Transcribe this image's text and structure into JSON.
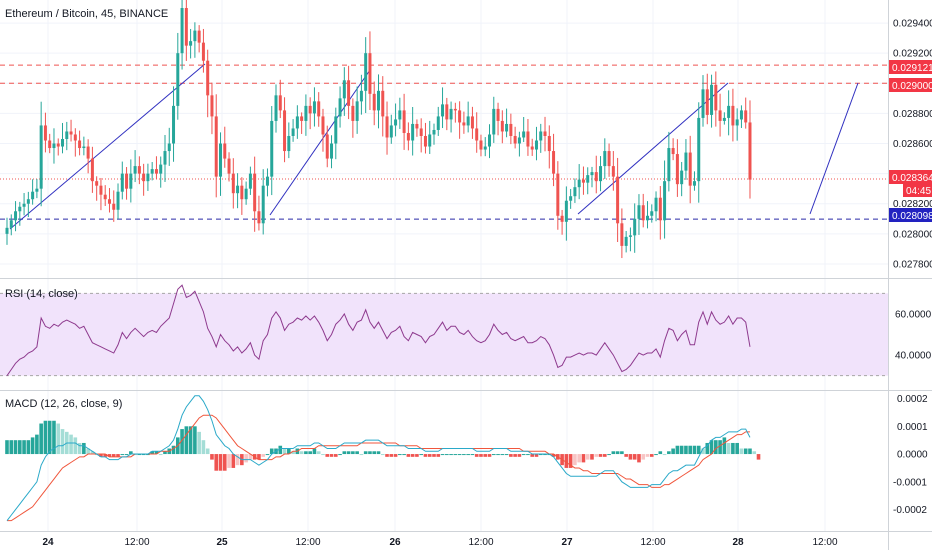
{
  "header": {
    "symbol_title": "Ethereum / Bitcoin, 45, BINANCE"
  },
  "colors": {
    "up": "#26a69a",
    "down": "#ef5350",
    "red_line": "#ef5350",
    "blue_line": "#2a2aa8",
    "trend_line": "#3030c0",
    "rsi_line": "#8e3a8e",
    "rsi_band": "#f1e3fb",
    "macd_line": "#2aa9c9",
    "signal_line": "#f0563c",
    "hist_up_strong": "#26a69a",
    "hist_up_weak": "#a4ddd6",
    "hist_down_strong": "#ef5350",
    "hist_down_weak": "#f8c4c4"
  },
  "panes": {
    "rsi_label": "RSI (14, close)",
    "macd_label": "MACD (12, 26, close, 9)"
  },
  "price_axis": {
    "ticks": [
      "0.029400",
      "0.029200",
      "0.029000",
      "0.028800",
      "0.028600",
      "0.028400",
      "0.028200",
      "0.028000",
      "0.027800"
    ]
  },
  "rsi_axis": {
    "ticks": [
      "60.0000",
      "40.0000"
    ]
  },
  "macd_axis": {
    "ticks": [
      "0.0002",
      "0.0001",
      "0.0000",
      "-0.0001",
      "-0.0002"
    ]
  },
  "time_axis": {
    "ticks": [
      "24",
      "12:00",
      "25",
      "12:00",
      "26",
      "12:00",
      "27",
      "12:00",
      "28",
      "12:00"
    ]
  },
  "badges": {
    "level_high": "0.029121",
    "level_mid": "0.029000",
    "current_price": "0.028364",
    "countdown": "04:45",
    "level_low": "0.028098"
  },
  "chart_data": {
    "type": "candlestick",
    "title": "Ethereum / Bitcoin, 45, BINANCE",
    "close_series": [
      0.02804,
      0.02809,
      0.02815,
      0.02818,
      0.0282,
      0.02823,
      0.02828,
      0.0283,
      0.02872,
      0.02862,
      0.02857,
      0.0286,
      0.02858,
      0.02863,
      0.02868,
      0.02866,
      0.02862,
      0.02857,
      0.02858,
      0.0285,
      0.02835,
      0.02832,
      0.02826,
      0.02823,
      0.0282,
      0.02816,
      0.02828,
      0.0284,
      0.0283,
      0.0284,
      0.02845,
      0.0284,
      0.02835,
      0.0284,
      0.02843,
      0.0284,
      0.02846,
      0.02855,
      0.0286,
      0.02885,
      0.0292,
      0.0295,
      0.02925,
      0.02928,
      0.02935,
      0.02927,
      0.02915,
      0.02892,
      0.02878,
      0.02838,
      0.0286,
      0.0285,
      0.0284,
      0.02827,
      0.02832,
      0.02823,
      0.0283,
      0.0284,
      0.02815,
      0.02807,
      0.02832,
      0.02838,
      0.02875,
      0.02892,
      0.02882,
      0.02855,
      0.02865,
      0.0287,
      0.02878,
      0.02875,
      0.02885,
      0.0288,
      0.02888,
      0.02878,
      0.02866,
      0.0285,
      0.0286,
      0.02878,
      0.0289,
      0.02902,
      0.02885,
      0.02875,
      0.02888,
      0.02895,
      0.0292,
      0.02893,
      0.02882,
      0.02895,
      0.02878,
      0.02864,
      0.02872,
      0.02876,
      0.02882,
      0.02867,
      0.02862,
      0.02873,
      0.0287,
      0.02865,
      0.02858,
      0.02866,
      0.02869,
      0.02878,
      0.02886,
      0.02876,
      0.02883,
      0.02882,
      0.02874,
      0.02872,
      0.02878,
      0.0287,
      0.02862,
      0.02856,
      0.02858,
      0.02866,
      0.02883,
      0.02875,
      0.02868,
      0.02873,
      0.02865,
      0.0286,
      0.02864,
      0.02868,
      0.02858,
      0.02856,
      0.02862,
      0.02868,
      0.02865,
      0.02855,
      0.0284,
      0.02812,
      0.02808,
      0.02822,
      0.02825,
      0.02831,
      0.02836,
      0.02834,
      0.02839,
      0.02841,
      0.02835,
      0.02845,
      0.02855,
      0.02845,
      0.02838,
      0.02807,
      0.02792,
      0.02798,
      0.02799,
      0.0281,
      0.02819,
      0.02809,
      0.02812,
      0.02815,
      0.02824,
      0.02809,
      0.02835,
      0.02857,
      0.02853,
      0.02833,
      0.02842,
      0.02854,
      0.02832,
      0.02835,
      0.02877,
      0.02896,
      0.02879,
      0.02899,
      0.02882,
      0.02875,
      0.02877,
      0.02885,
      0.02872,
      0.02876,
      0.02882,
      0.02874,
      0.02836
    ],
    "price_axis": {
      "range": [
        0.02772,
        0.02954
      ],
      "ticks": [
        0.0294,
        0.0292,
        0.029,
        0.0288,
        0.0286,
        0.0284,
        0.0282,
        0.028,
        0.0278
      ]
    },
    "horizontal_levels": [
      {
        "value": 0.029121,
        "color": "#ef5350",
        "style": "dashed"
      },
      {
        "value": 0.029,
        "color": "#ef5350",
        "style": "dashed"
      },
      {
        "value": 0.028364,
        "color": "#ef5350",
        "style": "dotted"
      },
      {
        "value": 0.028098,
        "color": "#2a2aa8",
        "style": "dashed"
      }
    ],
    "rsi": {
      "range": [
        24,
        76
      ],
      "band": [
        30,
        70
      ],
      "ticks": [
        60,
        40
      ],
      "values": [
        30,
        33,
        36,
        38,
        39,
        41,
        42,
        44,
        58,
        54,
        53,
        55,
        54,
        56,
        57,
        56,
        55,
        53,
        54,
        50,
        46,
        45,
        44,
        43,
        42,
        41,
        45,
        51,
        48,
        51,
        53,
        51,
        49,
        51,
        52,
        51,
        54,
        56,
        58,
        65,
        72,
        74,
        68,
        69,
        71,
        66,
        61,
        53,
        49,
        44,
        50,
        47,
        45,
        42,
        44,
        41,
        43,
        46,
        40,
        38,
        47,
        50,
        58,
        61,
        58,
        52,
        55,
        56,
        58,
        57,
        59,
        57,
        59,
        56,
        52,
        47,
        50,
        55,
        57,
        60,
        55,
        52,
        56,
        57,
        62,
        56,
        53,
        56,
        52,
        48,
        51,
        52,
        54,
        49,
        47,
        51,
        50,
        49,
        46,
        49,
        50,
        53,
        56,
        52,
        54,
        54,
        51,
        50,
        52,
        49,
        47,
        46,
        47,
        50,
        55,
        52,
        50,
        51,
        48,
        47,
        48,
        49,
        46,
        46,
        47,
        49,
        48,
        45,
        40,
        34,
        35,
        39,
        39,
        40,
        41,
        40,
        41,
        41,
        40,
        43,
        46,
        43,
        40,
        36,
        32,
        33,
        35,
        38,
        41,
        40,
        41,
        41,
        43,
        39,
        47,
        53,
        52,
        47,
        50,
        52,
        45,
        45,
        56,
        61,
        55,
        61,
        57,
        55,
        56,
        59,
        55,
        58,
        58,
        56,
        44
      ]
    },
    "macd": {
      "range": [
        -0.00027,
        0.00022
      ],
      "ticks": [
        0.0002,
        0.0001,
        0.0,
        -0.0001,
        -0.0002
      ],
      "macd": [
        -0.00024,
        -0.00022,
        -0.0002,
        -0.00018,
        -0.00016,
        -0.00014,
        -0.00012,
        -0.0001,
        -4e-05,
        -1e-05,
        1e-05,
        2e-05,
        3e-05,
        3e-05,
        4e-05,
        4e-05,
        4e-05,
        3e-05,
        3e-05,
        2e-05,
        1e-05,
        0.0,
        -1e-05,
        -1e-05,
        -2e-05,
        -2e-05,
        -2e-05,
        -1e-05,
        -1e-05,
        0.0,
        0.0,
        0.0,
        0.0,
        0.0,
        1e-05,
        1e-05,
        1e-05,
        2e-05,
        3e-05,
        5e-05,
        9e-05,
        0.00014,
        0.00017,
        0.00019,
        0.00021,
        0.00021,
        0.00019,
        0.00016,
        0.00012,
        7e-05,
        5e-05,
        3e-05,
        2e-05,
        0.0,
        -1e-05,
        -2e-05,
        -2e-05,
        -2e-05,
        -3e-05,
        -4e-05,
        -3e-05,
        -2e-05,
        0.0,
        1e-05,
        2e-05,
        2e-05,
        2e-05,
        2e-05,
        3e-05,
        3e-05,
        3e-05,
        3e-05,
        4e-05,
        4e-05,
        3e-05,
        2e-05,
        2e-05,
        2e-05,
        3e-05,
        4e-05,
        4e-05,
        4e-05,
        4e-05,
        4e-05,
        5e-05,
        5e-05,
        5e-05,
        5e-05,
        4e-05,
        3e-05,
        3e-05,
        3e-05,
        3e-05,
        3e-05,
        2e-05,
        2e-05,
        2e-05,
        2e-05,
        1e-05,
        1e-05,
        1e-05,
        1e-05,
        2e-05,
        2e-05,
        2e-05,
        2e-05,
        2e-05,
        2e-05,
        2e-05,
        2e-05,
        1e-05,
        1e-05,
        1e-05,
        1e-05,
        2e-05,
        2e-05,
        2e-05,
        2e-05,
        1e-05,
        1e-05,
        1e-05,
        1e-05,
        1e-05,
        0.0,
        0.0,
        0.0,
        0.0,
        0.0,
        -1e-05,
        -3e-05,
        -5e-05,
        -7e-05,
        -8e-05,
        -8e-05,
        -8e-05,
        -8e-05,
        -8e-05,
        -8e-05,
        -8e-05,
        -7e-05,
        -6e-05,
        -6e-05,
        -6e-05,
        -8e-05,
        -0.0001,
        -0.00011,
        -0.00012,
        -0.00012,
        -0.00012,
        -0.00012,
        -0.00012,
        -0.00011,
        -0.00011,
        -0.00011,
        -9e-05,
        -7e-05,
        -6e-05,
        -6e-05,
        -5e-05,
        -4e-05,
        -4e-05,
        -4e-05,
        -1e-05,
        2e-05,
        3e-05,
        5e-05,
        6e-05,
        6e-05,
        7e-05,
        8e-05,
        8e-05,
        8e-05,
        9e-05,
        9e-05,
        6e-05
      ],
      "signal": [
        -0.00024,
        -0.00024,
        -0.00023,
        -0.00022,
        -0.00021,
        -0.0002,
        -0.00019,
        -0.00017,
        -0.00015,
        -0.00013,
        -0.00011,
        -9e-05,
        -7e-05,
        -5e-05,
        -4e-05,
        -3e-05,
        -2e-05,
        -1e-05,
        -1e-05,
        0.0,
        0.0,
        0.0,
        0.0,
        0.0,
        -1e-05,
        -1e-05,
        -1e-05,
        -1e-05,
        -1e-05,
        -1e-05,
        0.0,
        0.0,
        0.0,
        0.0,
        0.0,
        0.0,
        1e-05,
        1e-05,
        1e-05,
        2e-05,
        3e-05,
        5e-05,
        7e-05,
        9e-05,
        0.00011,
        0.00013,
        0.00014,
        0.00014,
        0.00014,
        0.00013,
        0.00011,
        9e-05,
        7e-05,
        5e-05,
        3e-05,
        2e-05,
        1e-05,
        0.0,
        -1e-05,
        -2e-05,
        -2e-05,
        -2e-05,
        -2e-05,
        -1e-05,
        -1e-05,
        0.0,
        0.0,
        1e-05,
        1e-05,
        2e-05,
        2e-05,
        2e-05,
        2e-05,
        3e-05,
        3e-05,
        3e-05,
        3e-05,
        3e-05,
        3e-05,
        3e-05,
        3e-05,
        3e-05,
        3e-05,
        4e-05,
        4e-05,
        4e-05,
        4e-05,
        4e-05,
        4e-05,
        4e-05,
        4e-05,
        4e-05,
        3e-05,
        3e-05,
        3e-05,
        3e-05,
        3e-05,
        2e-05,
        2e-05,
        2e-05,
        2e-05,
        2e-05,
        2e-05,
        2e-05,
        2e-05,
        2e-05,
        2e-05,
        2e-05,
        2e-05,
        2e-05,
        2e-05,
        2e-05,
        2e-05,
        2e-05,
        2e-05,
        2e-05,
        2e-05,
        2e-05,
        2e-05,
        2e-05,
        2e-05,
        1e-05,
        1e-05,
        1e-05,
        1e-05,
        1e-05,
        1e-05,
        0.0,
        0.0,
        -1e-05,
        -2e-05,
        -3e-05,
        -4e-05,
        -5e-05,
        -5e-05,
        -6e-05,
        -6e-05,
        -7e-05,
        -7e-05,
        -7e-05,
        -7e-05,
        -7e-05,
        -7e-05,
        -7e-05,
        -8e-05,
        -9e-05,
        -9e-05,
        -0.0001,
        -0.00011,
        -0.00011,
        -0.00011,
        -0.00012,
        -0.00012,
        -0.00012,
        -0.00011,
        -0.00011,
        -0.0001,
        -9e-05,
        -8e-05,
        -7e-05,
        -6e-05,
        -5e-05,
        -4e-05,
        -2e-05,
        -1e-05,
        0.0,
        2e-05,
        3e-05,
        4e-05,
        5e-05,
        6e-05,
        7e-05,
        7e-05,
        8e-05,
        8e-05
      ],
      "histogram": [
        5e-05,
        5e-05,
        5e-05,
        5e-05,
        5e-05,
        5e-05,
        6e-05,
        7e-05,
        0.00011,
        0.00012,
        0.00012,
        0.00012,
        0.00011,
        9e-05,
        8e-05,
        7e-05,
        6e-05,
        4e-05,
        4e-05,
        2e-05,
        1e-05,
        0.0,
        -1e-05,
        -1e-05,
        -1e-05,
        -1e-05,
        -1e-05,
        0.0,
        0.0,
        1e-05,
        0.0,
        0.0,
        0.0,
        0.0,
        1e-05,
        1e-05,
        0.0,
        1e-05,
        2e-05,
        3e-05,
        6e-05,
        9e-05,
        0.0001,
        0.0001,
        0.0001,
        8e-05,
        5e-05,
        2e-05,
        -2e-05,
        -6e-05,
        -6e-05,
        -6e-05,
        -5e-05,
        -5e-05,
        -4e-05,
        -4e-05,
        -3e-05,
        -2e-05,
        -2e-05,
        -2e-05,
        -1e-05,
        0.0,
        2e-05,
        2e-05,
        3e-05,
        2e-05,
        2e-05,
        1e-05,
        2e-05,
        1e-05,
        1e-05,
        1e-05,
        2e-05,
        1e-05,
        0.0,
        -1e-05,
        -1e-05,
        -1e-05,
        0.0,
        1e-05,
        1e-05,
        1e-05,
        1e-05,
        0.0,
        1e-05,
        1e-05,
        1e-05,
        1e-05,
        0.0,
        -1e-05,
        -1e-05,
        -1e-05,
        0.0,
        0.0,
        -1e-05,
        -1e-05,
        -1e-05,
        0.0,
        -1e-05,
        -1e-05,
        -1e-05,
        -1e-05,
        0.0,
        0.0,
        0.0,
        0.0,
        0.0,
        0.0,
        0.0,
        0.0,
        -1e-05,
        -1e-05,
        -1e-05,
        -1e-05,
        0.0,
        0.0,
        0.0,
        0.0,
        -1e-05,
        -1e-05,
        -1e-05,
        0.0,
        0.0,
        -1e-05,
        -1e-05,
        0.0,
        0.0,
        0.0,
        -1e-05,
        -2e-05,
        -4e-05,
        -5e-05,
        -5e-05,
        -4e-05,
        -3e-05,
        -3e-05,
        -2e-05,
        -2e-05,
        -1e-05,
        -1e-05,
        -1e-05,
        0.0,
        1e-05,
        1e-05,
        1e-05,
        -1e-05,
        -2e-05,
        -2e-05,
        -3e-05,
        -2e-05,
        -1e-05,
        -1e-05,
        0.0,
        1e-05,
        0.0,
        1e-05,
        2e-05,
        3e-05,
        3e-05,
        3e-05,
        3e-05,
        3e-05,
        3e-05,
        2e-05,
        4e-05,
        5e-05,
        5e-05,
        5e-05,
        6e-05,
        4e-05,
        4e-05,
        4e-05,
        2e-05,
        2e-05,
        2e-05,
        1e-05,
        -2e-05
      ]
    },
    "time_ticks": [
      "24",
      "12:00",
      "25",
      "12:00",
      "26",
      "12:00",
      "27",
      "12:00",
      "28",
      "12:00"
    ]
  }
}
